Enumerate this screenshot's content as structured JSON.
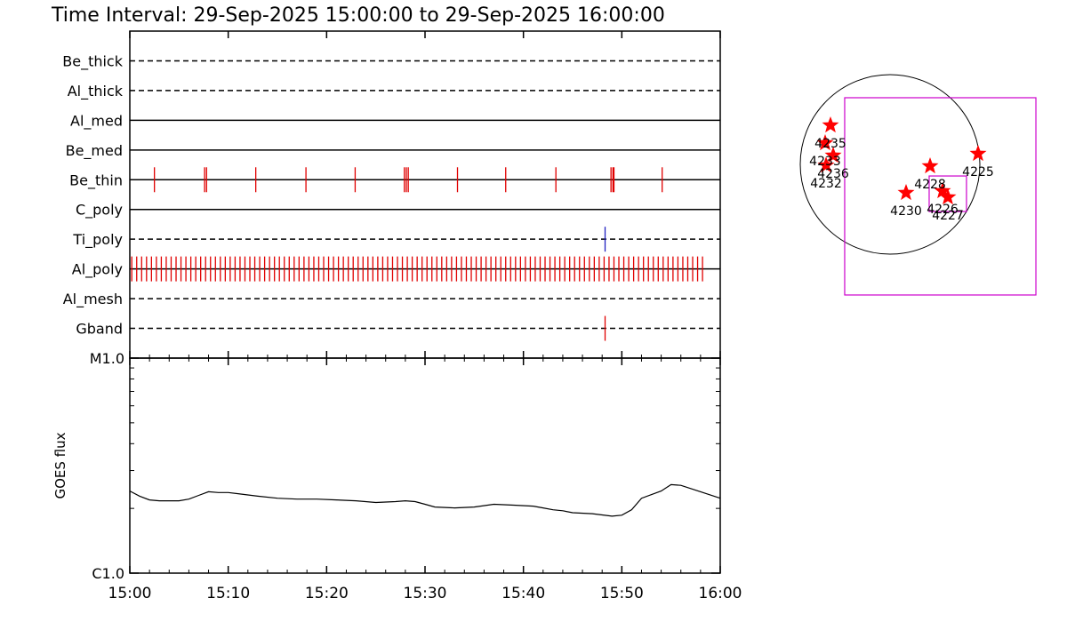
{
  "title": "Time Interval: 29-Sep-2025 15:00:00 to 29-Sep-2025 16:00:00",
  "chart_data": [
    {
      "type": "timeline",
      "xlim": [
        0,
        60
      ],
      "xticks": [
        0,
        10,
        20,
        30,
        40,
        50,
        60
      ],
      "xminorticks": [
        2,
        4,
        6,
        8,
        12,
        14,
        16,
        18,
        22,
        24,
        26,
        28,
        32,
        34,
        36,
        38,
        42,
        44,
        46,
        48,
        52,
        54,
        56,
        58
      ],
      "series": [
        {
          "name": "Be_thick",
          "style": "dashed",
          "color": "#000000",
          "event_color": "#e00000",
          "events": []
        },
        {
          "name": "Al_thick",
          "style": "dashed",
          "color": "#000000",
          "event_color": "#e00000",
          "events": []
        },
        {
          "name": "Al_med",
          "style": "solid",
          "color": "#000000",
          "event_color": "#e00000",
          "events": []
        },
        {
          "name": "Be_med",
          "style": "solid",
          "color": "#000000",
          "event_color": "#e00000",
          "events": []
        },
        {
          "name": "Be_thin",
          "style": "solid",
          "color": "#000000",
          "event_color": "#e00000",
          "events": [
            2.5,
            7.6,
            7.8,
            12.8,
            17.9,
            22.9,
            27.9,
            28.1,
            28.3,
            33.3,
            38.2,
            43.3,
            48.9,
            49.1,
            49.2,
            54.1
          ]
        },
        {
          "name": "C_poly",
          "style": "solid",
          "color": "#000000",
          "event_color": "#e00000",
          "events": []
        },
        {
          "name": "Ti_poly",
          "style": "dashed",
          "color": "#000000",
          "event_color": "#2020c0",
          "events": [
            48.3
          ]
        },
        {
          "name": "Al_poly",
          "style": "solid",
          "color": "#000000",
          "event_color": "#e00000",
          "events": [
            0.2,
            0.7,
            1.2,
            1.7,
            2.2,
            2.7,
            3.2,
            3.7,
            4.2,
            4.7,
            5.2,
            5.7,
            6.2,
            6.7,
            7.2,
            7.7,
            8.2,
            8.7,
            9.2,
            9.7,
            10.2,
            10.7,
            11.2,
            11.7,
            12.2,
            12.7,
            13.2,
            13.7,
            14.2,
            14.7,
            15.2,
            15.7,
            16.2,
            16.7,
            17.2,
            17.7,
            18.2,
            18.7,
            19.2,
            19.7,
            20.2,
            20.7,
            21.2,
            21.7,
            22.2,
            22.7,
            23.2,
            23.7,
            24.2,
            24.7,
            25.2,
            25.7,
            26.2,
            26.7,
            27.2,
            27.7,
            28.2,
            28.7,
            29.2,
            29.7,
            30.2,
            30.7,
            31.2,
            31.7,
            32.2,
            32.7,
            33.2,
            33.7,
            34.2,
            34.7,
            35.2,
            35.7,
            36.2,
            36.7,
            37.2,
            37.7,
            38.2,
            38.7,
            39.2,
            39.7,
            40.2,
            40.7,
            41.2,
            41.7,
            42.2,
            42.7,
            43.2,
            43.7,
            44.2,
            44.7,
            45.2,
            45.7,
            46.2,
            46.7,
            47.2,
            47.7,
            48.2,
            48.7,
            49.2,
            49.7,
            50.2,
            50.7,
            51.2,
            51.7,
            52.2,
            52.7,
            53.2,
            53.7,
            54.2,
            54.7,
            55.2,
            55.7,
            56.2,
            56.7,
            57.2,
            57.7,
            58.2
          ]
        },
        {
          "name": "Al_mesh",
          "style": "dashed",
          "color": "#000000",
          "event_color": "#e00000",
          "events": []
        },
        {
          "name": "Gband",
          "style": "dashed",
          "color": "#000000",
          "event_color": "#e00000",
          "events": [
            48.3
          ]
        }
      ]
    },
    {
      "type": "line",
      "ylabel": "GOES flux",
      "color": "#000000",
      "log_y": true,
      "xlim": [
        0,
        60
      ],
      "xticks": [
        {
          "value": 0,
          "label": "15:00"
        },
        {
          "value": 10,
          "label": "15:10"
        },
        {
          "value": 20,
          "label": "15:20"
        },
        {
          "value": 30,
          "label": "15:30"
        },
        {
          "value": 40,
          "label": "15:40"
        },
        {
          "value": 50,
          "label": "15:50"
        },
        {
          "value": 60,
          "label": "16:00"
        }
      ],
      "xminorticks": [
        2,
        4,
        6,
        8,
        12,
        14,
        16,
        18,
        22,
        24,
        26,
        28,
        32,
        34,
        36,
        38,
        42,
        44,
        46,
        48,
        52,
        54,
        56,
        58
      ],
      "ylim": [
        1e-06,
        1e-05
      ],
      "yticks": [
        {
          "value": 1e-06,
          "label": "C1.0"
        },
        {
          "value": 1e-05,
          "label": "M1.0"
        }
      ],
      "yminorticks": [
        2e-06,
        3e-06,
        4e-06,
        5e-06,
        6e-06,
        7e-06,
        8e-06,
        9e-06
      ],
      "x": [
        0,
        1,
        2,
        3,
        5,
        6,
        7,
        8,
        9,
        10,
        11,
        13,
        15,
        17,
        19,
        21,
        23,
        25,
        27,
        28,
        29,
        30,
        31,
        33,
        35,
        37,
        39,
        41,
        42,
        43,
        44,
        45,
        47,
        49,
        50,
        51,
        52,
        54,
        55,
        56,
        58,
        60
      ],
      "values": [
        2.41e-06,
        2.28e-06,
        2.19e-06,
        2.17e-06,
        2.17e-06,
        2.21e-06,
        2.3e-06,
        2.39e-06,
        2.37e-06,
        2.37e-06,
        2.34e-06,
        2.28e-06,
        2.23e-06,
        2.21e-06,
        2.21e-06,
        2.19e-06,
        2.17e-06,
        2.13e-06,
        2.15e-06,
        2.17e-06,
        2.15e-06,
        2.09e-06,
        2.03e-06,
        2.01e-06,
        2.03e-06,
        2.09e-06,
        2.07e-06,
        2.05e-06,
        2.01e-06,
        1.97e-06,
        1.95e-06,
        1.91e-06,
        1.89e-06,
        1.84e-06,
        1.86e-06,
        1.97e-06,
        2.23e-06,
        2.41e-06,
        2.58e-06,
        2.56e-06,
        2.39e-06,
        2.23e-06
      ]
    },
    {
      "type": "sunmap",
      "disk_radius": 960,
      "disk_color": "#000000",
      "box_color": "#cc00cc",
      "star_color": "#ff0000",
      "boxes": [
        {
          "x": [
            -485,
            1559
          ],
          "y": [
            -1397,
            713
          ]
        },
        {
          "x": [
            418,
            817
          ],
          "y": [
            -504,
            -124
          ]
        }
      ],
      "regions": [
        {
          "name": "4235",
          "x": -637,
          "y": 418
        },
        {
          "name": "4233",
          "x": -694,
          "y": 228
        },
        {
          "name": "4236",
          "x": -608,
          "y": 95
        },
        {
          "name": "4232",
          "x": -684,
          "y": -10
        },
        {
          "name": "4225",
          "x": 941,
          "y": 114
        },
        {
          "name": "4228",
          "x": 428,
          "y": -19
        },
        {
          "name": "4230",
          "x": 171,
          "y": -304
        },
        {
          "name": "4226",
          "x": 561,
          "y": -285
        },
        {
          "name": "4227",
          "x": 618,
          "y": -352
        }
      ]
    }
  ]
}
